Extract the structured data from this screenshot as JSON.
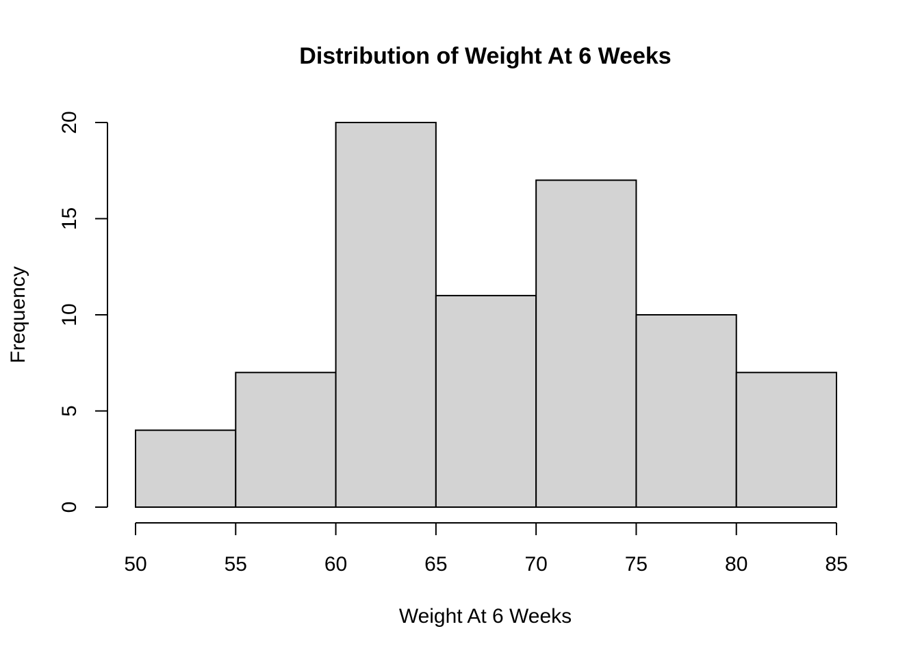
{
  "chart_data": {
    "type": "bar",
    "title": "Distribution of Weight At 6 Weeks",
    "xlabel": "Weight At 6 Weeks",
    "ylabel": "Frequency",
    "bins": [
      {
        "start": 50,
        "end": 55,
        "count": 4
      },
      {
        "start": 55,
        "end": 60,
        "count": 7
      },
      {
        "start": 60,
        "end": 65,
        "count": 20
      },
      {
        "start": 65,
        "end": 70,
        "count": 11
      },
      {
        "start": 70,
        "end": 75,
        "count": 17
      },
      {
        "start": 75,
        "end": 80,
        "count": 10
      },
      {
        "start": 80,
        "end": 85,
        "count": 7
      }
    ],
    "xlim": [
      50,
      85
    ],
    "ylim": [
      0,
      20
    ],
    "x_ticks": [
      "50",
      "55",
      "60",
      "65",
      "70",
      "75",
      "80",
      "85"
    ],
    "y_ticks": [
      "0",
      "5",
      "10",
      "15",
      "20"
    ],
    "grid": false,
    "bar_color": "#d3d3d3",
    "edge_color": "#000000"
  }
}
